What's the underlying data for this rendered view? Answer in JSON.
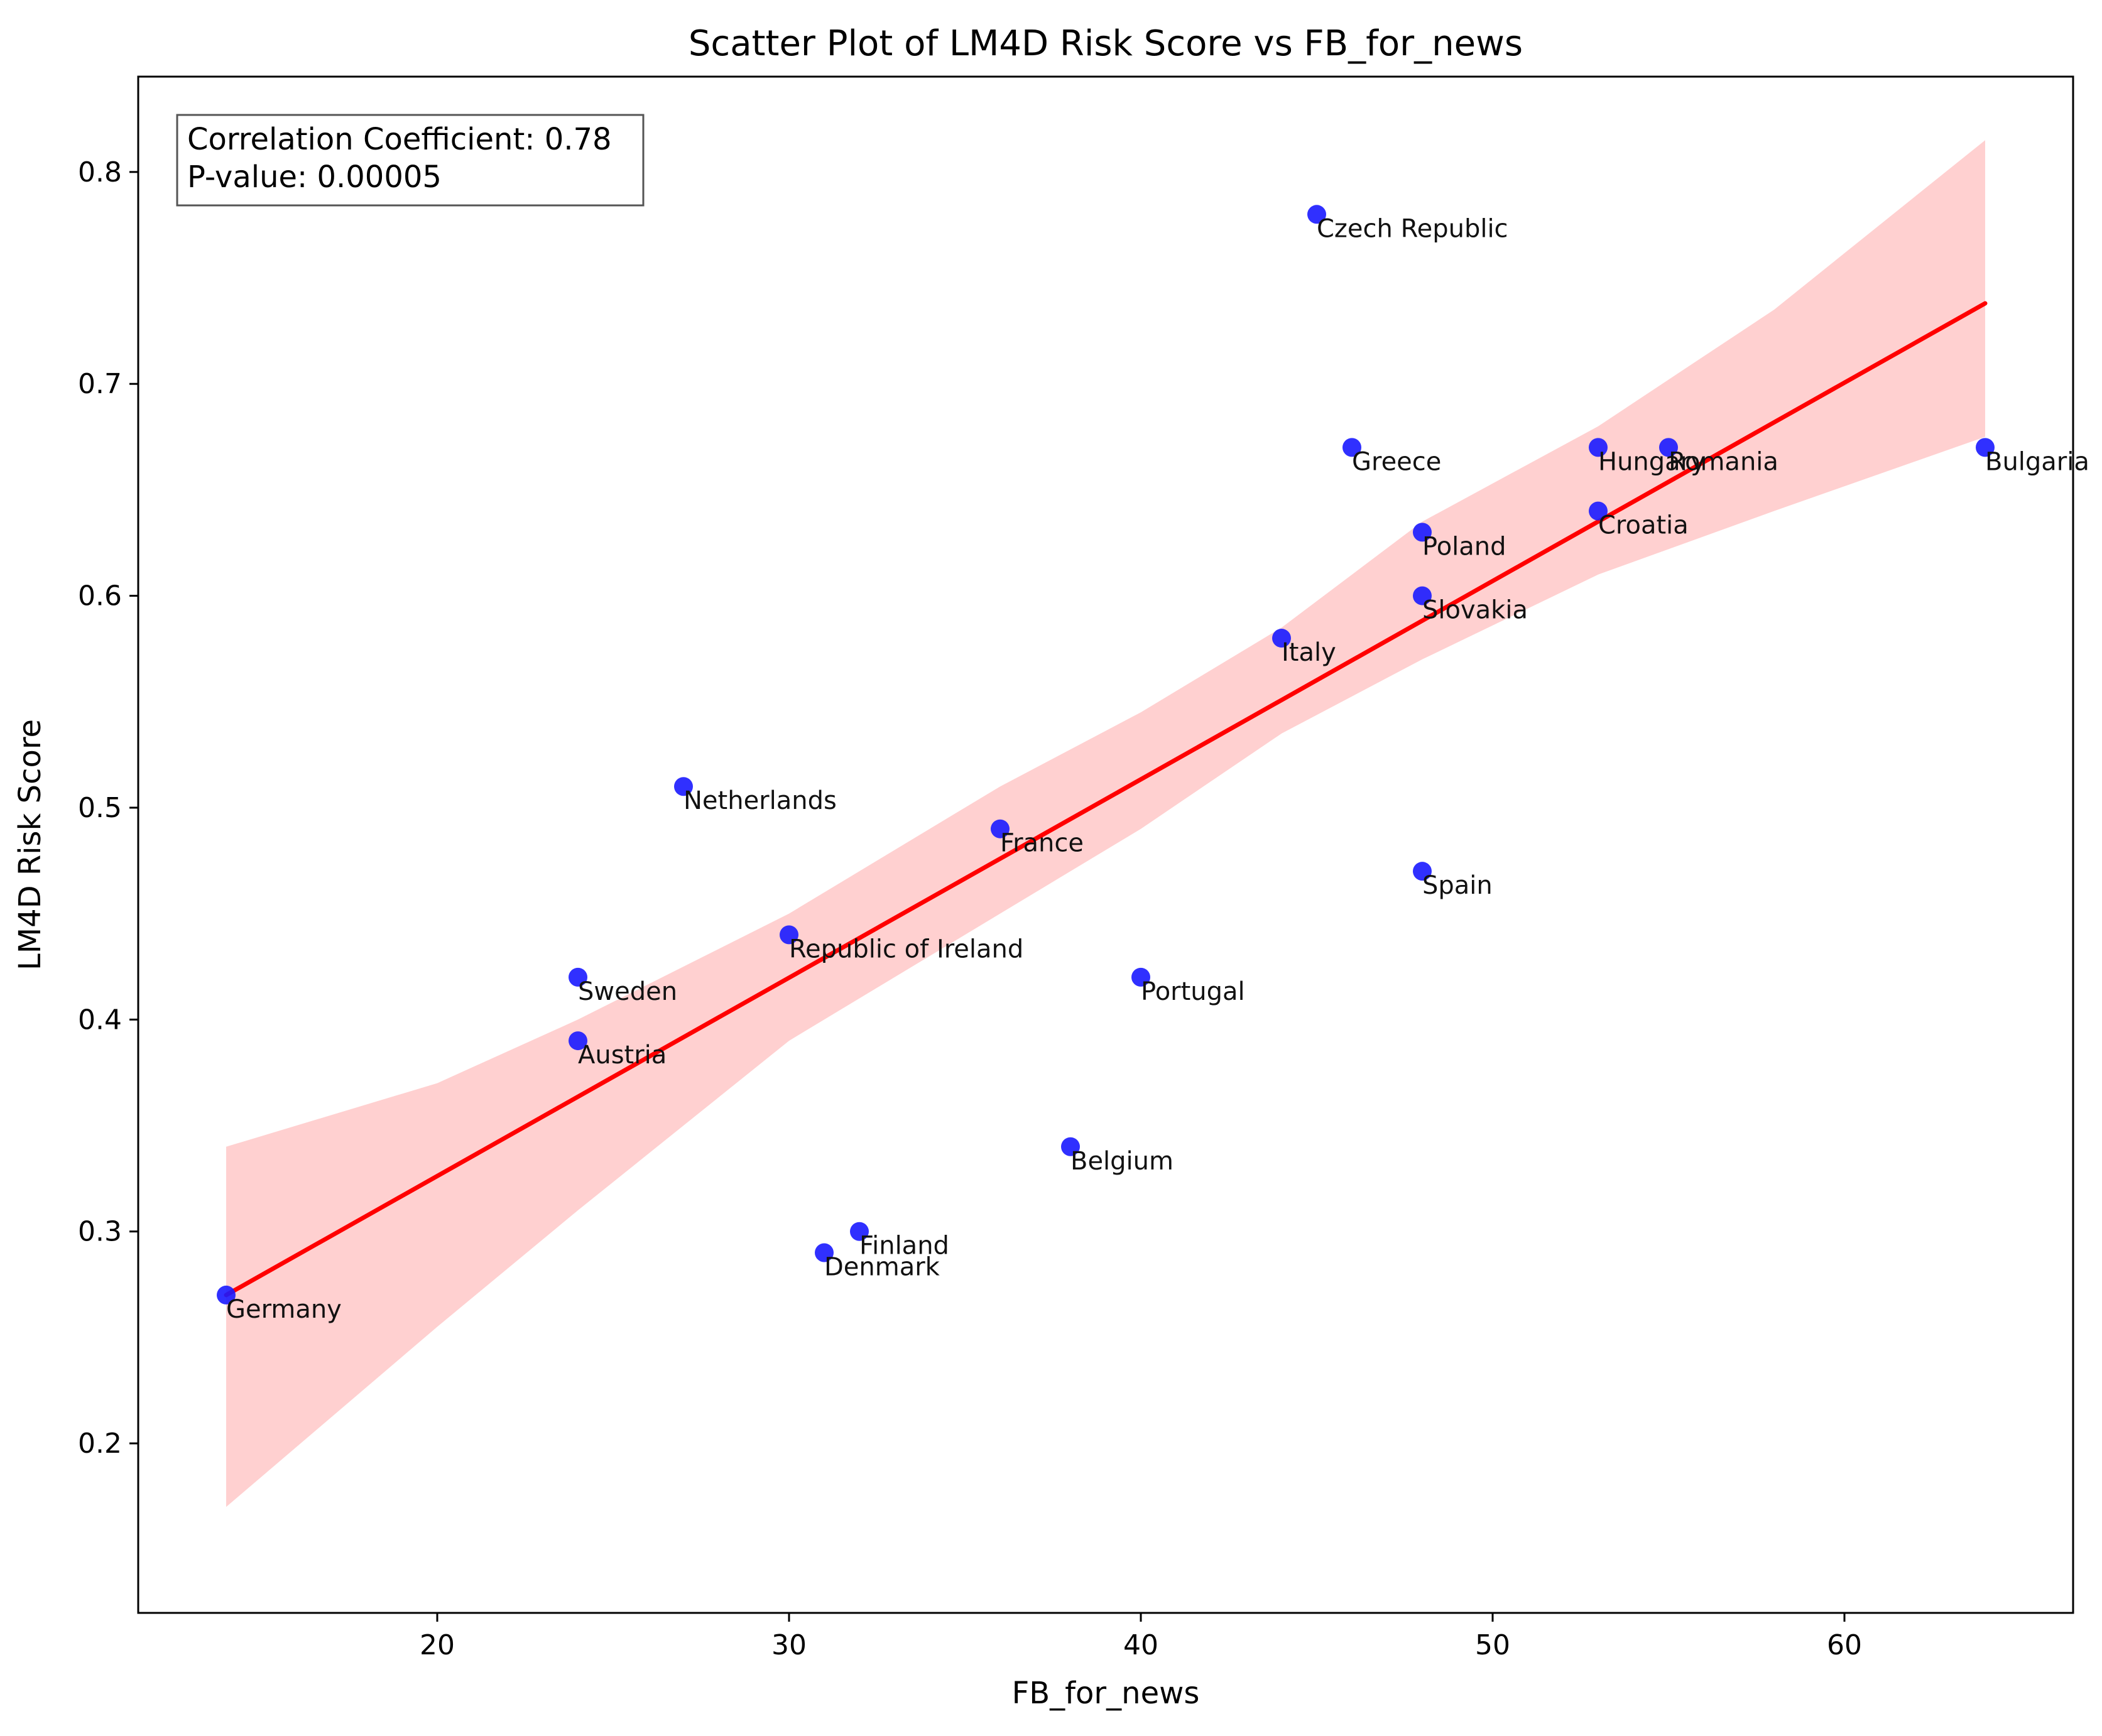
{
  "chart_data": {
    "type": "scatter",
    "title": "Scatter Plot of LM4D Risk Score vs FB_for_news",
    "xlabel": "FB_for_news",
    "ylabel": "LM4D Risk Score",
    "xlim": [
      11.5,
      66.5
    ],
    "ylim": [
      0.12,
      0.845
    ],
    "xticks": [
      20,
      30,
      40,
      50,
      60
    ],
    "yticks": [
      0.2,
      0.3,
      0.4,
      0.5,
      0.6,
      0.7,
      0.8
    ],
    "grid": false,
    "point_color": "#1a1aff",
    "line_color": "#ff0000",
    "band_color": "#ffd0d0",
    "annotation": {
      "correlation": "Correlation Coefficient: 0.78",
      "pvalue": "P-value: 0.00005",
      "placement": "top-left"
    },
    "points": [
      {
        "label": "Germany",
        "x": 14,
        "y": 0.27
      },
      {
        "label": "Sweden",
        "x": 24,
        "y": 0.42
      },
      {
        "label": "Austria",
        "x": 24,
        "y": 0.39
      },
      {
        "label": "Netherlands",
        "x": 27,
        "y": 0.51
      },
      {
        "label": "Republic of Ireland",
        "x": 30,
        "y": 0.44
      },
      {
        "label": "Denmark",
        "x": 31,
        "y": 0.29
      },
      {
        "label": "Finland",
        "x": 32,
        "y": 0.3
      },
      {
        "label": "France",
        "x": 36,
        "y": 0.49
      },
      {
        "label": "Belgium",
        "x": 38,
        "y": 0.34
      },
      {
        "label": "Portugal",
        "x": 40,
        "y": 0.42
      },
      {
        "label": "Italy",
        "x": 44,
        "y": 0.58
      },
      {
        "label": "Czech Republic",
        "x": 45,
        "y": 0.78
      },
      {
        "label": "Greece",
        "x": 46,
        "y": 0.67
      },
      {
        "label": "Poland",
        "x": 48,
        "y": 0.63
      },
      {
        "label": "Slovakia",
        "x": 48,
        "y": 0.6
      },
      {
        "label": "Spain",
        "x": 48,
        "y": 0.47
      },
      {
        "label": "Hungary",
        "x": 53,
        "y": 0.67
      },
      {
        "label": "Croatia",
        "x": 53,
        "y": 0.64
      },
      {
        "label": "Romania",
        "x": 55,
        "y": 0.67
      },
      {
        "label": "Bulgaria",
        "x": 64,
        "y": 0.67
      }
    ],
    "regression": {
      "x": [
        14,
        64
      ],
      "y": [
        0.27,
        0.738
      ]
    },
    "confidence_band": {
      "x": [
        14,
        20,
        24,
        30,
        36,
        40,
        44,
        48,
        53,
        58,
        64
      ],
      "upper": [
        0.34,
        0.37,
        0.4,
        0.45,
        0.51,
        0.545,
        0.585,
        0.635,
        0.68,
        0.735,
        0.815
      ],
      "lower": [
        0.17,
        0.255,
        0.31,
        0.39,
        0.45,
        0.49,
        0.535,
        0.57,
        0.61,
        0.64,
        0.675
      ]
    }
  }
}
